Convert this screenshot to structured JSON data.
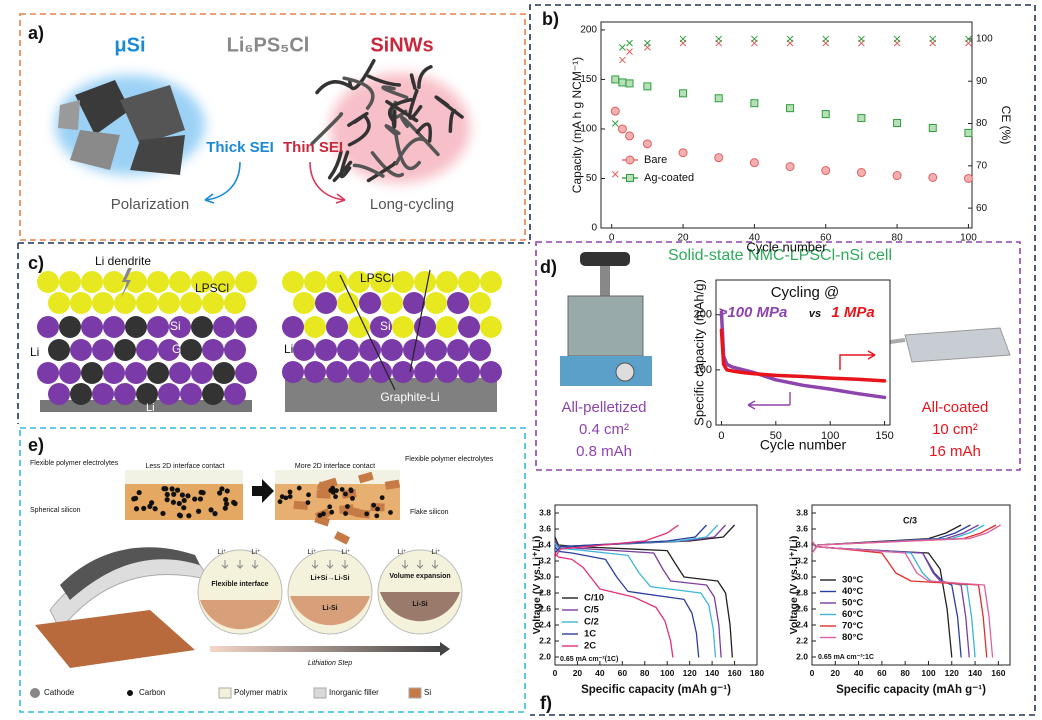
{
  "panels": {
    "a": "a)",
    "b": "b)",
    "c": "c)",
    "d": "d)",
    "e": "e)",
    "f": "f)"
  },
  "panel_a": {
    "left_title": "μSi",
    "center_title": "Li₆PS₅Cl",
    "right_title": "SiNWs",
    "left_sei": "Thick SEI",
    "right_sei": "Thin SEI",
    "left_outcome": "Polarization",
    "right_outcome": "Long-cycling"
  },
  "panel_c": {
    "dendrite": "Li dendrite",
    "left_electrolyte": "LPSCl",
    "left_si": "Si",
    "left_graphite": "G",
    "left_li_side": "Li",
    "left_li_base": "Li",
    "right_electrolyte": "LPSCl",
    "right_si": "Si",
    "right_li_side": "Li",
    "right_base": "Graphite-Li"
  },
  "panel_d": {
    "title": "Solid-state NMC-LPSCl-nSi cell",
    "left_cell": [
      "All-pelletized",
      "0.4 cm²",
      "0.8 mAh"
    ],
    "right_cell": [
      "All-coated",
      "10 cm²",
      "16 mAh"
    ]
  },
  "panel_e": {
    "left_electrolyte": "Flexible polymer electrolytes",
    "left_contact": "Less 2D interface contact",
    "right_contact": "More 2D interface contact",
    "right_electrolyte": "Flexible polymer electrolytes",
    "left_silicon": "Spherical silicon",
    "right_silicon": "Flake silicon",
    "ion_labels": [
      "Li⁺",
      "Li⁺",
      "Li⁺",
      "Li⁺",
      "Li⁺",
      "Li⁺"
    ],
    "stage_1": "Flexible interface",
    "stage_2": "Li+Si→Li-Si",
    "stage_2_layer": "Li-Si",
    "stage_3": "Volume expansion",
    "stage_3_layer": "Li-Si",
    "arrow": "Lithiation Step",
    "legend": [
      "Cathode",
      "Carbon",
      "Polymer matrix",
      "Inorganic filler",
      "Si"
    ]
  },
  "chart_data": [
    {
      "type": "line",
      "xlabel": "Cycle number",
      "ylabel": "Capacity (mA h g NCM⁻¹)",
      "y2label": "CE (%)",
      "legend": "lower left",
      "x": [
        1,
        3,
        5,
        10,
        20,
        30,
        40,
        50,
        60,
        70,
        80,
        90,
        100
      ],
      "xlim": [
        -3,
        101
      ],
      "xticks": [
        0,
        20,
        40,
        60,
        80,
        100
      ],
      "ylim": [
        0,
        208
      ],
      "yticks": [
        0,
        50,
        100,
        150,
        200
      ],
      "y2lim": [
        55.3,
        104
      ],
      "y2ticks": [
        60,
        70,
        80,
        90,
        100
      ],
      "series": [
        {
          "name": "Bare",
          "color": "#e06060",
          "marker": "circle",
          "values": [
            118,
            100,
            93,
            85,
            76,
            71,
            66,
            62,
            58,
            56,
            53,
            51,
            50
          ]
        },
        {
          "name": "Ag-coated",
          "color": "#2e9e3e",
          "marker": "square",
          "values": [
            150,
            147,
            146,
            143,
            136,
            131,
            126,
            121,
            115,
            111,
            106,
            101,
            96
          ]
        },
        {
          "color": "#e06060",
          "marker": "cross",
          "axis": "y2",
          "values": [
            68,
            95,
            97,
            98,
            99,
            99,
            99,
            99,
            99,
            99,
            99,
            99,
            99
          ]
        },
        {
          "color": "#2e9e3e",
          "marker": "cross",
          "axis": "y2",
          "values": [
            80,
            98,
            99,
            99,
            100,
            100,
            100,
            100,
            100,
            100,
            100,
            100,
            100
          ]
        }
      ]
    },
    {
      "type": "line",
      "title": "Cycling @",
      "annotation": "vs",
      "xlabel": "Cycle number",
      "ylabel": "Specific capacity (mAh/g)",
      "x": [
        0,
        2,
        5,
        10,
        20,
        30,
        50,
        75,
        100,
        125,
        150
      ],
      "xlim": [
        -5,
        155
      ],
      "xticks": [
        0,
        50,
        100,
        150
      ],
      "ylim": [
        0,
        263
      ],
      "yticks": [
        0,
        100,
        200
      ],
      "series": [
        {
          "name": ">100 MPa",
          "color": "#8e44ad",
          "values": [
            205,
            125,
            110,
            105,
            100,
            95,
            82,
            72,
            65,
            57,
            50
          ]
        },
        {
          "name": "1 MPa",
          "color": "#e8141c",
          "values": [
            172,
            110,
            100,
            98,
            95,
            93,
            90,
            88,
            85,
            83,
            80
          ]
        }
      ]
    },
    {
      "type": "line",
      "xlabel": "Specific capacity (mAh g⁻¹)",
      "ylabel": "Voltage (V vs.Li⁺/Li)",
      "note": "0.65 mA cm⁻²(1C)",
      "legend": "lower left",
      "xlim": [
        0,
        180
      ],
      "xticks": [
        0,
        20,
        40,
        60,
        80,
        100,
        120,
        140,
        160,
        180
      ],
      "ylim": [
        1.9,
        3.9
      ],
      "yticks": [
        {
          "value": 2,
          "label": "2.0"
        },
        2.2,
        2.4,
        2.6,
        2.8,
        {
          "value": 3,
          "label": "3.0"
        },
        3.2,
        3.4,
        3.6,
        3.8
      ],
      "series": [
        {
          "name": "C/10",
          "color": "#222222",
          "x": [
            0,
            3,
            20,
            100,
            108,
            115,
            145,
            152,
            156,
            158
          ],
          "values": [
            3.5,
            3.4,
            3.38,
            3.33,
            3.15,
            3.0,
            2.95,
            2.8,
            2.4,
            2.0
          ],
          "charge_x": [
            0,
            5,
            120,
            150,
            160
          ],
          "charge_values": [
            3.3,
            3.38,
            3.45,
            3.5,
            3.65
          ]
        },
        {
          "name": "C/5",
          "color": "#7b3f9e",
          "x": [
            0,
            3,
            20,
            88,
            96,
            103,
            135,
            142,
            146,
            148
          ],
          "values": [
            3.45,
            3.38,
            3.36,
            3.3,
            3.1,
            2.95,
            2.9,
            2.75,
            2.4,
            2.0
          ],
          "charge_x": [
            0,
            5,
            115,
            142,
            152
          ],
          "charge_values": [
            3.3,
            3.38,
            3.45,
            3.5,
            3.65
          ]
        },
        {
          "name": "C/2",
          "color": "#3fb6d6",
          "x": [
            0,
            3,
            20,
            65,
            75,
            85,
            130,
            137,
            141,
            143
          ],
          "values": [
            3.42,
            3.36,
            3.34,
            3.27,
            3.05,
            2.88,
            2.8,
            2.65,
            2.35,
            2.0
          ],
          "charge_x": [
            0,
            5,
            110,
            135,
            145
          ],
          "charge_values": [
            3.3,
            3.38,
            3.45,
            3.5,
            3.65
          ]
        },
        {
          "name": "1C",
          "color": "#2c3fa0",
          "x": [
            0,
            3,
            15,
            45,
            55,
            65,
            115,
            122,
            126,
            128
          ],
          "values": [
            3.38,
            3.32,
            3.3,
            3.22,
            3.0,
            2.82,
            2.72,
            2.55,
            2.3,
            2.0
          ],
          "charge_x": [
            0,
            5,
            100,
            125,
            135
          ],
          "charge_values": [
            3.3,
            3.38,
            3.45,
            3.5,
            3.65
          ]
        },
        {
          "name": "2C",
          "color": "#e0307a",
          "x": [
            0,
            3,
            15,
            25,
            40,
            70,
            90,
            98,
            103,
            105
          ],
          "values": [
            3.3,
            3.25,
            3.22,
            3.12,
            2.85,
            2.75,
            2.62,
            2.45,
            2.2,
            2.0
          ],
          "charge_x": [
            0,
            5,
            80,
            100,
            110
          ],
          "charge_values": [
            3.25,
            3.35,
            3.45,
            3.55,
            3.65
          ]
        }
      ]
    },
    {
      "type": "line",
      "title": "C/3",
      "xlabel": "Specific capacity (mAh g⁻¹)",
      "ylabel": "Voltage (V vs.Li⁺/Li)",
      "note": "0.65 mA cm⁻²:1C",
      "legend": "lower left",
      "xlim": [
        0,
        170
      ],
      "xticks": [
        0,
        20,
        40,
        60,
        80,
        100,
        120,
        140,
        160
      ],
      "ylim": [
        1.9,
        3.9
      ],
      "yticks": [
        {
          "value": 2,
          "label": "2.0"
        },
        2.2,
        2.4,
        2.6,
        2.8,
        {
          "value": 3,
          "label": "3.0"
        },
        3.2,
        3.4,
        3.6,
        3.8
      ],
      "series": [
        {
          "name": "30°C",
          "color": "#222222",
          "x": [
            0,
            3,
            20,
            100,
            110,
            116,
            120
          ],
          "values": [
            3.45,
            3.38,
            3.36,
            3.3,
            3.1,
            2.6,
            2.0
          ],
          "charge_x": [
            0,
            5,
            100,
            115,
            128
          ],
          "charge_values": [
            3.3,
            3.4,
            3.48,
            3.55,
            3.65
          ]
        },
        {
          "name": "40°C",
          "color": "#2c3fa0",
          "x": [
            0,
            3,
            20,
            95,
            105,
            112,
            120,
            125,
            128
          ],
          "values": [
            3.45,
            3.38,
            3.36,
            3.3,
            3.05,
            2.95,
            2.9,
            2.5,
            2.0
          ],
          "charge_x": [
            0,
            5,
            108,
            123,
            136
          ],
          "charge_values": [
            3.3,
            3.4,
            3.48,
            3.55,
            3.65
          ]
        },
        {
          "name": "50°C",
          "color": "#7b3f9e",
          "x": [
            0,
            3,
            20,
            95,
            104,
            110,
            128,
            132,
            135
          ],
          "values": [
            3.45,
            3.38,
            3.36,
            3.3,
            3.05,
            2.95,
            2.9,
            2.5,
            2.0
          ],
          "charge_x": [
            0,
            5,
            115,
            130,
            143
          ],
          "charge_values": [
            3.3,
            3.4,
            3.48,
            3.55,
            3.65
          ]
        },
        {
          "name": "60°C",
          "color": "#3fb6d6",
          "x": [
            0,
            3,
            20,
            85,
            95,
            102,
            133,
            137,
            140
          ],
          "values": [
            3.45,
            3.38,
            3.36,
            3.3,
            3.05,
            2.95,
            2.9,
            2.5,
            2.0
          ],
          "charge_x": [
            0,
            5,
            120,
            135,
            148
          ],
          "charge_values": [
            3.3,
            3.4,
            3.48,
            3.55,
            3.65
          ]
        },
        {
          "name": "70°C",
          "color": "#e0302a",
          "x": [
            0,
            3,
            20,
            60,
            72,
            85,
            143,
            147,
            150
          ],
          "values": [
            3.45,
            3.38,
            3.36,
            3.3,
            3.05,
            2.95,
            2.9,
            2.5,
            2.0
          ],
          "charge_x": [
            0,
            5,
            130,
            145,
            158
          ],
          "charge_values": [
            3.3,
            3.4,
            3.48,
            3.55,
            3.65
          ]
        },
        {
          "name": "80°C",
          "color": "#e060a0",
          "x": [
            0,
            3,
            20,
            80,
            90,
            100,
            148,
            152,
            155
          ],
          "values": [
            3.45,
            3.38,
            3.36,
            3.3,
            3.05,
            2.95,
            2.9,
            2.5,
            2.0
          ],
          "charge_x": [
            0,
            5,
            135,
            150,
            162
          ],
          "charge_values": [
            3.3,
            3.4,
            3.48,
            3.55,
            3.65
          ]
        }
      ]
    }
  ]
}
